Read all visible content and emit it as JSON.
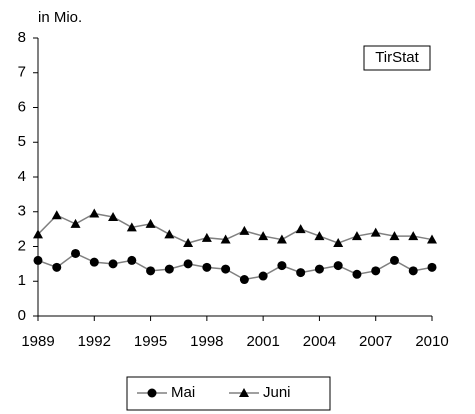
{
  "chart_data": {
    "type": "line",
    "y_label": "in Mio.",
    "annotation": "TirStat",
    "x": [
      1989,
      1990,
      1991,
      1992,
      1993,
      1994,
      1995,
      1996,
      1997,
      1998,
      1999,
      2000,
      2001,
      2002,
      2003,
      2004,
      2005,
      2006,
      2007,
      2008,
      2009,
      2010
    ],
    "series": [
      {
        "name": "Mai",
        "color": "#000000",
        "line_color": "#808080",
        "marker": "circle",
        "values": [
          1.6,
          1.4,
          1.8,
          1.55,
          1.5,
          1.6,
          1.3,
          1.35,
          1.5,
          1.4,
          1.35,
          1.05,
          1.15,
          1.45,
          1.25,
          1.35,
          1.45,
          1.2,
          1.3,
          1.6,
          1.3,
          1.4
        ]
      },
      {
        "name": "Juni",
        "color": "#000000",
        "line_color": "#808080",
        "marker": "triangle",
        "values": [
          2.35,
          2.9,
          2.65,
          2.95,
          2.85,
          2.55,
          2.65,
          2.35,
          2.1,
          2.25,
          2.2,
          2.45,
          2.3,
          2.2,
          2.5,
          2.3,
          2.1,
          2.3,
          2.4,
          2.3,
          2.3,
          2.2
        ]
      }
    ],
    "xlim": [
      1989,
      2010
    ],
    "xticks": [
      1989,
      1992,
      1995,
      1998,
      2001,
      2004,
      2007,
      2010
    ],
    "ylim": [
      0,
      8
    ],
    "yticks": [
      0,
      1,
      2,
      3,
      4,
      5,
      6,
      7,
      8
    ],
    "grid": false,
    "legend": "bottom"
  }
}
